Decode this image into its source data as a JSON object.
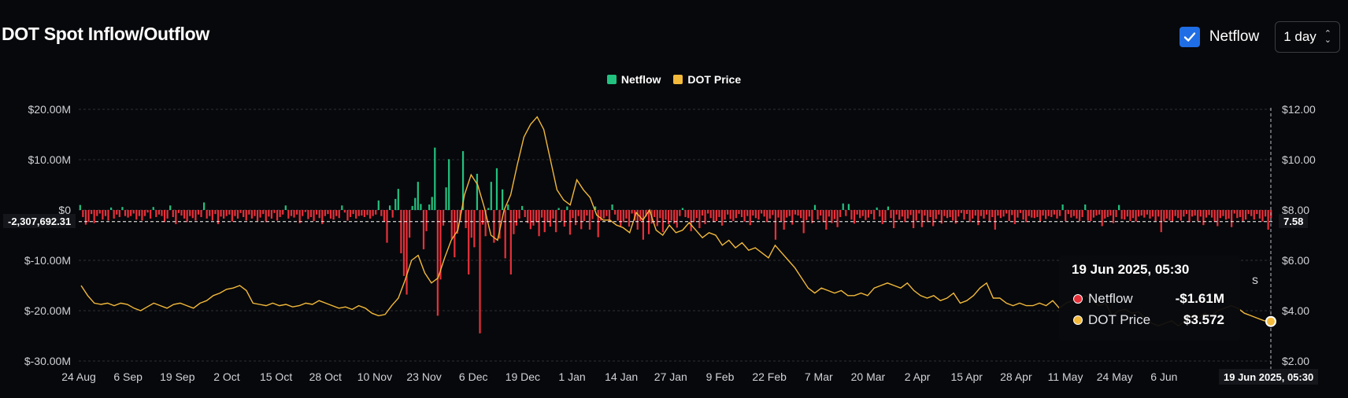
{
  "title": "DOT Spot Inflow/Outflow",
  "controls": {
    "netflow_checked": true,
    "netflow_label": "Netflow",
    "interval": "1 day",
    "check_icon": "check-icon",
    "chevron_icon": "chevron-up-down-icon"
  },
  "legend": [
    {
      "name": "Netflow",
      "color": "#22c17f"
    },
    {
      "name": "DOT Price",
      "color": "#f2b93b"
    }
  ],
  "crosshair": {
    "y_label": "-2,307,692.31",
    "right_label": "7.58",
    "date_label": "19 Jun 2025, 05:30"
  },
  "tooltip": {
    "date": "19 Jun 2025, 05:30",
    "rows": [
      {
        "name": "Netflow",
        "value": "-$1.61M",
        "color": "#e8303a"
      },
      {
        "name": "DOT Price",
        "value": "$3.572",
        "color": "#f2b93b"
      }
    ],
    "partial_text": "s"
  },
  "chart_data": {
    "type": "bar",
    "title": "DOT Spot Inflow/Outflow",
    "series": [
      {
        "name": "Netflow",
        "type": "bar",
        "color_positive": "#22c17f",
        "color_negative": "#e8303a",
        "unit": "USD millions",
        "values": [
          1.0,
          -1.4,
          -2.9,
          -2.4,
          -0.8,
          -2.6,
          -1.2,
          -0.7,
          -1.9,
          -1.2,
          -2.1,
          0.5,
          -1.7,
          -0.9,
          -1.4,
          0.6,
          -1.2,
          -1.5,
          -1.2,
          -0.7,
          -1.9,
          -1.2,
          -2.1,
          -1.2,
          -0.5,
          -1.7,
          0.6,
          -1.4,
          -0.9,
          -1.2,
          -2.4,
          -1.7,
          0.9,
          -1.4,
          -2.8,
          -0.6,
          -1.1,
          -1.7,
          -2.4,
          -1.2,
          -1.6,
          -2.1,
          -0.9,
          -1.4,
          1.5,
          -1.7,
          -1.2,
          -2.1,
          -0.8,
          -2.8,
          -1.3,
          -1.7,
          -1.2,
          -0.9,
          -2.3,
          -1.2,
          -1.7,
          -0.6,
          -1.4,
          -2.1,
          -0.9,
          -1.7,
          -1.2,
          -2.2,
          -1.5,
          -0.8,
          -2.4,
          -1.3,
          -1.7,
          -0.6,
          -2.1,
          -1.4,
          -0.9,
          0.9,
          -1.7,
          -1.2,
          -1.5,
          -0.9,
          -2.6,
          -1.2,
          -0.4,
          -1.8,
          -1.4,
          -2.2,
          -0.9,
          -1.6,
          -2.8,
          -1.2,
          -0.8,
          -1.7,
          -1.9,
          -1.2,
          -1.6,
          0.9,
          -0.5,
          -2.1,
          -1.4,
          -0.8,
          -1.7,
          -1.2,
          -1.1,
          -1.4,
          -1.0,
          -1.7,
          -1.2,
          -0.9,
          1.9,
          -1.2,
          -2.3,
          -6.5,
          0.9,
          -1.5,
          2.2,
          4.2,
          -8.6,
          -13.1,
          -16.8,
          -5.5,
          0.8,
          2.4,
          5.6,
          1.2,
          -7.8,
          -4.2,
          1.1,
          2.6,
          12.4,
          -21.0,
          -13.8,
          -3.1,
          4.5,
          10.1,
          -5.7,
          -9.4,
          -4.7,
          -2.1,
          11.7,
          -3.6,
          -12.8,
          -5.5,
          -7.4,
          7.2,
          -24.5,
          -2.9,
          -5.2,
          0.4,
          5.6,
          -6.5,
          8.3,
          -5.7,
          4.1,
          -9.6,
          1.1,
          -12.8,
          -4.8,
          -3.1,
          -1.7,
          0.8,
          -1.4,
          -2.6,
          -3.8,
          -3.1,
          -2.4,
          -5.2,
          -1.5,
          -4.4,
          -2.4,
          -3.3,
          -1.7,
          -4.4,
          0.4,
          -2.2,
          -3.3,
          0.7,
          -4.9,
          -1.6,
          -3.0,
          -1.2,
          -3.8,
          -2.2,
          -1.1,
          -3.9,
          -1.8,
          0.7,
          -5.4,
          -2.1,
          -1.7,
          -1.2,
          -2.4,
          1.1,
          -0.9,
          -2.1,
          -3.2,
          -2.4,
          -1.7,
          -3.3,
          -0.7,
          -2.1,
          -3.9,
          -2.2,
          -5.9,
          -1.3,
          -4.8,
          -2.7,
          -1.4,
          -3.2,
          -1.6,
          -4.4,
          -1.9,
          -2.8,
          -2.1,
          -2.7,
          -3.5,
          -1.2,
          0.4,
          -1.4,
          -1.6,
          -4.2,
          -2.4,
          -1.6,
          -3.6,
          -1.1,
          -2.8,
          -0.7,
          -1.6,
          -2.4,
          -2.2,
          -1.4,
          -3.1,
          -1.9,
          -0.9,
          -1.8,
          -2.2,
          -1.6,
          -0.8,
          -1.4,
          -2.3,
          -1.2,
          -3.0,
          -1.1,
          -1.6,
          -1.9,
          -0.7,
          -1.3,
          -2.4,
          -1.7,
          -1.0,
          -5.9,
          -1.5,
          -2.2,
          -3.9,
          -1.5,
          -1.2,
          -2.9,
          -0.9,
          -1.1,
          -1.6,
          -4.6,
          -2.0,
          -1.3,
          -2.6,
          1.0,
          -1.9,
          -1.1,
          -2.4,
          -3.9,
          -1.3,
          -2.6,
          -1.8,
          -3.4,
          -1.4,
          1.3,
          -1.2,
          1.2,
          -1.9,
          -2.7,
          -0.9,
          -1.6,
          -1.2,
          -2.0,
          -1.5,
          -0.8,
          -1.9,
          0.5,
          -1.3,
          -2.8,
          -2.1,
          0.7,
          -1.6,
          -3.6,
          -0.9,
          -1.9,
          -1.3,
          -2.4,
          -1.7,
          -1.0,
          -3.6,
          -2.1,
          -0.7,
          -3.4,
          -1.1,
          -2.4,
          -1.4,
          -3.2,
          -1.8,
          -0.9,
          -2.7,
          -1.2,
          -1.6,
          -1.4,
          -2.1,
          -2.7,
          -1.3,
          -0.6,
          -1.9,
          -0.8,
          -2.4,
          -1.7,
          -1.1,
          -3.0,
          -1.2,
          -1.7,
          -0.9,
          -2.2,
          -1.4,
          -3.9,
          -1.1,
          -1.6,
          -1.3,
          -0.7,
          -2.2,
          -1.0,
          -2.8,
          -1.5,
          -0.6,
          -1.9,
          -2.4,
          -1.2,
          -1.5,
          -1.6,
          -1.4,
          -2.3,
          -1.1,
          -1.8,
          -1.2,
          -1.4,
          -0.9,
          -1.7,
          -1.2,
          1.1,
          -2.2,
          -0.8,
          -1.5,
          -1.2,
          -1.7,
          -2.2,
          -1.4,
          1.1,
          -2.1,
          -2.2,
          -1.5,
          -1.1,
          -0.9,
          -3.2,
          -1.7,
          -1.4,
          -1.1,
          -2.6,
          -1.4,
          1.0,
          -1.8,
          -1.9,
          -1.3,
          -2.2,
          -1.6,
          -2.3,
          -1.3,
          -1.1,
          -1.5,
          -0.9,
          -1.7,
          -1.3,
          -2.2,
          -1.3,
          -4.4,
          -2.3,
          -1.7,
          -2.1,
          -2.3,
          -1.2,
          -1.6,
          -2.1,
          -1.3,
          -0.8,
          -2.4,
          -1.3,
          -1.1,
          -2.2,
          -1.3,
          -3.0,
          -1.5,
          -1.0,
          -1.5,
          -2.3,
          -3.2,
          -1.6,
          -1.2,
          -1.9,
          -1.7,
          -3.4,
          -0.7,
          -1.6,
          -1.4,
          -2.2,
          -1.9,
          -0.8,
          -1.2,
          -1.9,
          -0.8,
          -1.7,
          -2.3,
          -1.3,
          -3.9,
          -1.61
        ]
      },
      {
        "name": "DOT Price",
        "type": "line",
        "color": "#f2b93b",
        "unit": "USD",
        "values": [
          5.0,
          4.6,
          4.3,
          4.25,
          4.3,
          4.2,
          4.3,
          4.25,
          4.1,
          4.0,
          4.15,
          4.3,
          4.2,
          4.1,
          4.25,
          4.3,
          4.2,
          4.1,
          4.3,
          4.4,
          4.6,
          4.7,
          4.85,
          4.9,
          5.0,
          4.8,
          4.3,
          4.25,
          4.2,
          4.3,
          4.2,
          4.25,
          4.15,
          4.2,
          4.3,
          4.25,
          4.4,
          4.3,
          4.2,
          4.1,
          4.15,
          4.05,
          4.2,
          4.1,
          3.9,
          3.8,
          3.85,
          4.2,
          4.5,
          5.2,
          6.0,
          6.2,
          5.5,
          5.1,
          5.3,
          6.1,
          6.8,
          7.2,
          8.6,
          9.4,
          9.0,
          8.1,
          7.0,
          6.8,
          8.0,
          8.6,
          9.8,
          10.9,
          11.4,
          11.7,
          11.2,
          10.0,
          8.8,
          8.4,
          8.2,
          9.2,
          8.8,
          8.5,
          7.8,
          7.6,
          7.6,
          7.4,
          7.3,
          7.1,
          7.9,
          7.6,
          8.0,
          7.2,
          7.0,
          7.4,
          7.1,
          7.2,
          7.5,
          7.2,
          6.9,
          7.1,
          7.0,
          6.6,
          6.8,
          6.5,
          6.7,
          6.4,
          6.5,
          6.3,
          6.1,
          6.6,
          6.3,
          6.0,
          5.7,
          5.3,
          4.9,
          4.7,
          4.9,
          4.8,
          4.7,
          4.8,
          4.6,
          4.6,
          4.7,
          4.6,
          4.9,
          5.0,
          5.1,
          5.0,
          4.9,
          5.1,
          4.8,
          4.6,
          4.5,
          4.6,
          4.4,
          4.5,
          4.7,
          4.3,
          4.4,
          4.6,
          4.9,
          5.1,
          4.5,
          4.5,
          4.3,
          4.2,
          4.3,
          4.2,
          4.2,
          4.3,
          4.2,
          4.4,
          4.1,
          4.3,
          4.4,
          4.5,
          4.6,
          4.4,
          4.2,
          4.3,
          3.8,
          4.0,
          4.05,
          3.9,
          3.95,
          3.7,
          3.5,
          3.4,
          3.5,
          3.6,
          3.4,
          3.6,
          3.8,
          3.7,
          3.9,
          3.8,
          4.0,
          4.1,
          4.2,
          4.1,
          3.9,
          3.8,
          3.7,
          3.6,
          3.572
        ]
      }
    ],
    "x_ticks": [
      "24 Aug",
      "6 Sep",
      "19 Sep",
      "2 Oct",
      "15 Oct",
      "28 Oct",
      "10 Nov",
      "23 Nov",
      "6 Dec",
      "19 Dec",
      "1 Jan",
      "14 Jan",
      "27 Jan",
      "9 Feb",
      "22 Feb",
      "7 Mar",
      "20 Mar",
      "2 Apr",
      "15 Apr",
      "28 Apr",
      "11 May",
      "24 May",
      "6 Jun",
      "19 Jun 2025, 05:30"
    ],
    "y_left": {
      "ticks": [
        "$20.00M",
        "$10.00M",
        "$0",
        "$-10.00M",
        "$-20.00M",
        "$-30.00M"
      ],
      "values": [
        20,
        10,
        0,
        -10,
        -20,
        -30
      ],
      "range": [
        -30,
        20
      ]
    },
    "y_right": {
      "ticks": [
        "$12.00",
        "$10.00",
        "$8.00",
        "$6.00",
        "$4.00",
        "$2.00"
      ],
      "values": [
        12,
        10,
        8,
        6,
        4,
        2
      ],
      "range": [
        2,
        12
      ]
    },
    "grid": true,
    "legend_position": "top-center"
  }
}
